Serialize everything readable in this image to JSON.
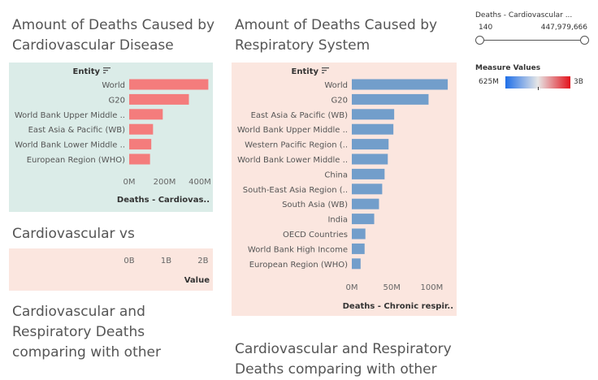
{
  "sheets": {
    "cardio_title": "Amount of Deaths Caused by Cardiovascular Disease",
    "resp_title": "Amount of Deaths Caused by Respiratory System",
    "vs_title": "Cardiovascular vs",
    "comp_title_left": "Cardiovascular and Respiratory Deaths comparing with other",
    "comp_title_right": "Cardiovascular and Respiratory Deaths comparing with other"
  },
  "filter": {
    "title": "Deaths - Cardiovascular ...",
    "min_label": "140",
    "max_label": "447,979,666"
  },
  "legend": {
    "title": "Measure Values",
    "min_label": "625M",
    "max_label": "3B",
    "colors": [
      "#1f6fe8",
      "#e6e6e6",
      "#e3121b"
    ]
  },
  "chart_data": [
    {
      "type": "bar",
      "orientation": "horizontal",
      "row_header": "Entity",
      "categories": [
        "World",
        "G20",
        "World Bank Upper Middle ..",
        "East Asia & Pacific (WB)",
        "World Bank Lower Middle ..",
        "European Region (WHO)"
      ],
      "values": [
        448000000,
        338000000,
        190000000,
        135000000,
        125000000,
        118000000
      ],
      "ticks": [
        "0M",
        "200M",
        "400M"
      ],
      "tick_values": [
        0,
        200000000,
        400000000
      ],
      "xlim": [
        0,
        460000000
      ],
      "xlabel": "Deaths - Cardiovas..",
      "color": "#f47c7c",
      "background": "#dbece8"
    },
    {
      "type": "bar",
      "orientation": "horizontal",
      "row_header": "Entity",
      "categories": [
        "World",
        "G20",
        "East Asia & Pacific (WB)",
        "World Bank Upper Middle ..",
        "Western Pacific Region (..",
        "World Bank Lower Middle ..",
        "China",
        "South-East Asia Region (..",
        "South Asia (WB)",
        "India",
        "OECD Countries",
        "World Bank High Income",
        "European Region (WHO)"
      ],
      "values": [
        120000000,
        96000000,
        53000000,
        52000000,
        46000000,
        45000000,
        41000000,
        38000000,
        34000000,
        28000000,
        17000000,
        16000000,
        11000000
      ],
      "ticks": [
        "0M",
        "50M",
        "100M"
      ],
      "tick_values": [
        0,
        50000000,
        100000000
      ],
      "xlim": [
        0,
        124000000
      ],
      "xlabel": "Deaths - Chronic respir..",
      "color": "#729ecb",
      "background": "#fbe6df"
    },
    {
      "type": "bar",
      "orientation": "horizontal",
      "categories": [],
      "values": [],
      "ticks": [
        "0B",
        "1B",
        "2B"
      ],
      "tick_values": [
        0,
        1000000000,
        2000000000
      ],
      "xlim": [
        0,
        2200000000
      ],
      "xlabel": "Value",
      "background": "#fbe6df"
    }
  ]
}
